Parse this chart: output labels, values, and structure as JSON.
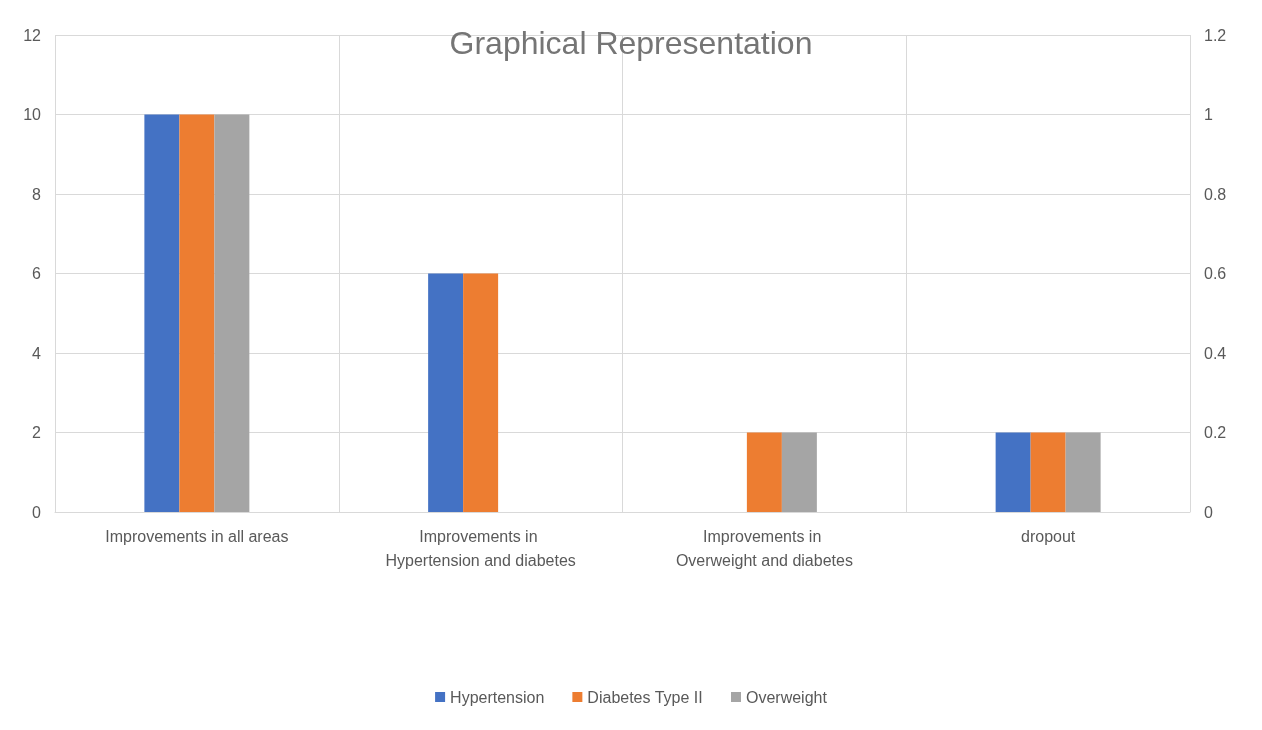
{
  "chart_data": {
    "type": "bar",
    "title": "Graphical Representation",
    "categories": [
      "Improvements in all areas",
      "Improvements in Hypertension and diabetes",
      "Improvements in Overweight and diabetes",
      "dropout"
    ],
    "series": [
      {
        "name": "Hypertension",
        "color": "#4472c4",
        "values": [
          10,
          6,
          0,
          2
        ]
      },
      {
        "name": "Diabetes Type II",
        "color": "#ed7d31",
        "values": [
          10,
          6,
          2,
          2
        ]
      },
      {
        "name": "Overweight",
        "color": "#a5a5a5",
        "values": [
          10,
          0,
          2,
          2
        ]
      }
    ],
    "ylim": [
      0,
      12
    ],
    "yticks": [
      0,
      2,
      4,
      6,
      8,
      10,
      12
    ],
    "y2lim": [
      0,
      1.2
    ],
    "y2ticks": [
      0,
      0.2,
      0.4,
      0.6,
      0.8,
      1,
      1.2
    ],
    "grid": true,
    "legend": "bottom"
  }
}
